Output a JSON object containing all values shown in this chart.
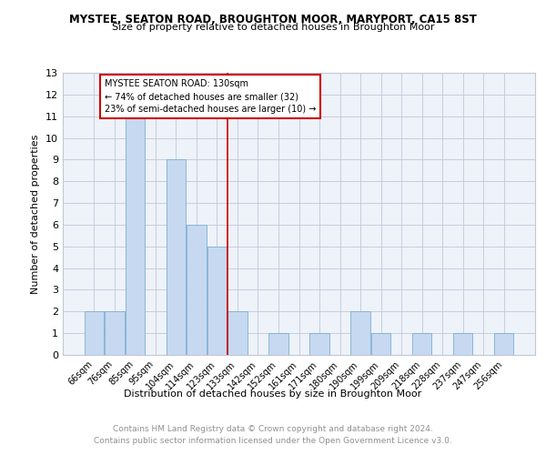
{
  "title": "MYSTEE, SEATON ROAD, BROUGHTON MOOR, MARYPORT, CA15 8ST",
  "subtitle": "Size of property relative to detached houses in Broughton Moor",
  "xlabel": "Distribution of detached houses by size in Broughton Moor",
  "ylabel": "Number of detached properties",
  "categories": [
    "66sqm",
    "76sqm",
    "85sqm",
    "95sqm",
    "104sqm",
    "114sqm",
    "123sqm",
    "133sqm",
    "142sqm",
    "152sqm",
    "161sqm",
    "171sqm",
    "180sqm",
    "190sqm",
    "199sqm",
    "209sqm",
    "218sqm",
    "228sqm",
    "237sqm",
    "247sqm",
    "256sqm"
  ],
  "values": [
    2,
    2,
    11,
    0,
    9,
    6,
    5,
    2,
    0,
    1,
    0,
    1,
    0,
    2,
    1,
    0,
    1,
    0,
    1,
    0,
    1
  ],
  "bar_color": "#c6d9f0",
  "bar_edge_color": "#7bafd4",
  "property_line_x": 6.5,
  "annotation_text": "MYSTEE SEATON ROAD: 130sqm\n← 74% of detached houses are smaller (32)\n23% of semi-detached houses are larger (10) →",
  "annotation_box_color": "#ffffff",
  "annotation_box_edge_color": "#cc0000",
  "vline_color": "#cc0000",
  "ylim": [
    0,
    13
  ],
  "yticks": [
    0,
    1,
    2,
    3,
    4,
    5,
    6,
    7,
    8,
    9,
    10,
    11,
    12,
    13
  ],
  "grid_color": "#c0c8d8",
  "footer_line1": "Contains HM Land Registry data © Crown copyright and database right 2024.",
  "footer_line2": "Contains public sector information licensed under the Open Government Licence v3.0.",
  "footer_color": "#909090",
  "bg_color": "#eef2f9"
}
